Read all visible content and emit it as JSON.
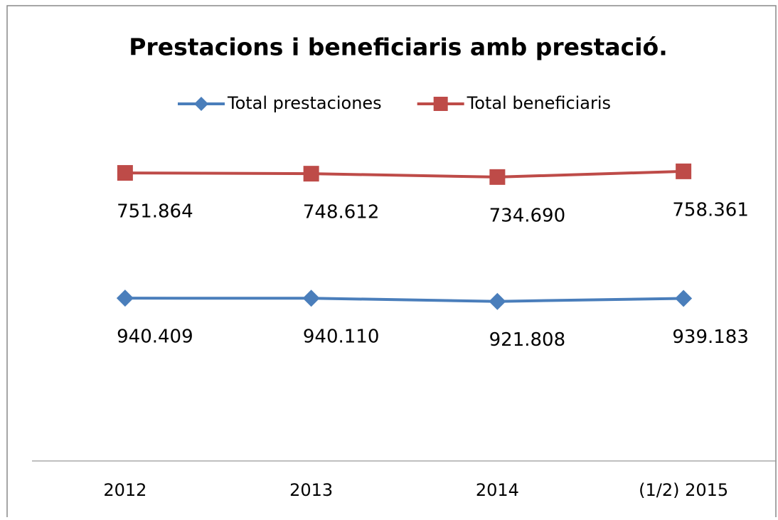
{
  "chart_data": {
    "type": "line",
    "title": "Prestacions i beneficiaris amb prestació.",
    "categories": [
      "2012",
      "2013",
      "2014",
      "(1/2) 2015"
    ],
    "series": [
      {
        "name": "Total prestaciones",
        "color": "#4a7ebb",
        "marker": "diamond",
        "values": [
          940409,
          940110,
          921808,
          939183
        ],
        "value_labels": [
          "940.409",
          "940.110",
          "921.808",
          "939.183"
        ]
      },
      {
        "name": "Total beneficiaris",
        "color": "#be4b48",
        "marker": "square",
        "axis": "y2",
        "values": [
          751864,
          748612,
          734690,
          758361
        ],
        "value_labels": [
          "751.864",
          "748.612",
          "734.690",
          "758.361"
        ]
      }
    ],
    "ylim": [
      0,
      1800000
    ],
    "y2lim": [
      -450000,
      850000
    ],
    "legend": "top"
  }
}
